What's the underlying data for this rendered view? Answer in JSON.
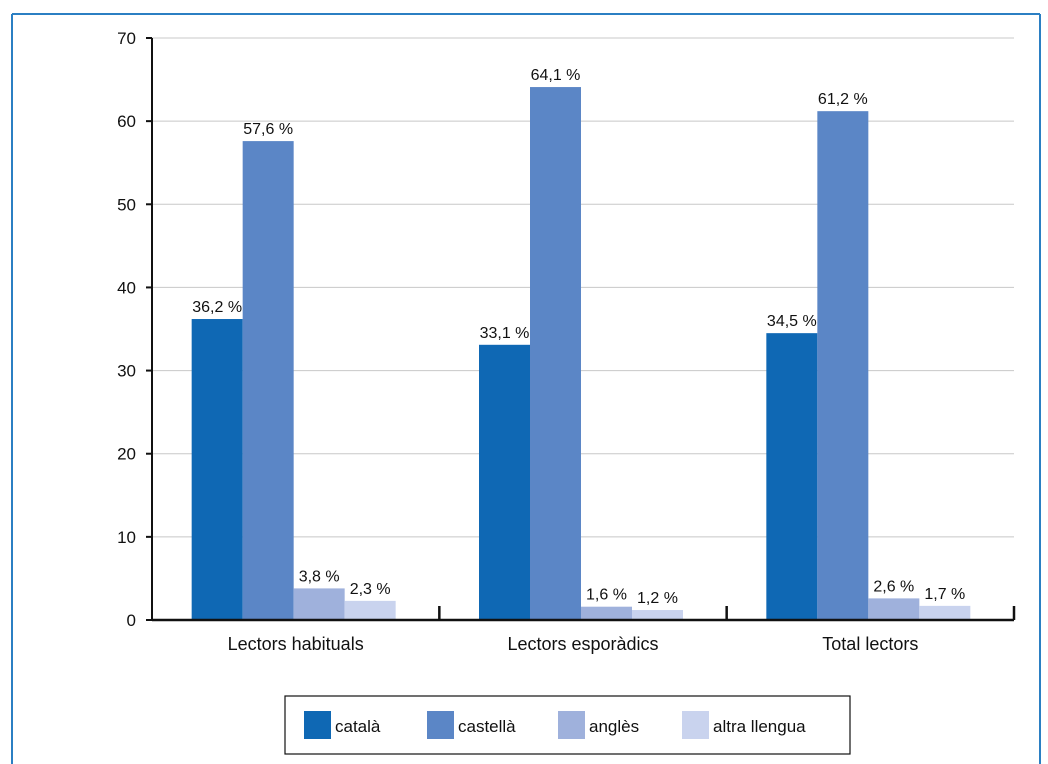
{
  "colors": {
    "frame": "#2b7fc3",
    "grid": "#c8c8c8",
    "axis": "#111111"
  },
  "chart_data": {
    "type": "bar",
    "categories": [
      "Lectors habituals",
      "Lectors esporàdics",
      "Total lectors"
    ],
    "series": [
      {
        "name": "català",
        "color": "#0f68b4",
        "values": [
          36.2,
          33.1,
          34.5
        ],
        "labels": [
          "36,2 %",
          "33,1 %",
          "34,5 %"
        ]
      },
      {
        "name": "castellà",
        "color": "#5b86c6",
        "values": [
          57.6,
          64.1,
          61.2
        ],
        "labels": [
          "57,6 %",
          "64,1 %",
          "61,2 %"
        ]
      },
      {
        "name": "anglès",
        "color": "#9fb1dc",
        "values": [
          3.8,
          1.6,
          2.6
        ],
        "labels": [
          "3,8 %",
          "1,6 %",
          "2,6 %"
        ]
      },
      {
        "name": "altra llengua",
        "color": "#c9d3ee",
        "values": [
          2.3,
          1.2,
          1.7
        ],
        "labels": [
          "2,3 %",
          "1,2 %",
          "1,7 %"
        ]
      }
    ],
    "ylim": [
      0,
      70
    ],
    "yticks": [
      0,
      10,
      20,
      30,
      40,
      50,
      60,
      70
    ],
    "grid": true,
    "legend_position": "bottom",
    "title": "",
    "xlabel": "",
    "ylabel": ""
  }
}
